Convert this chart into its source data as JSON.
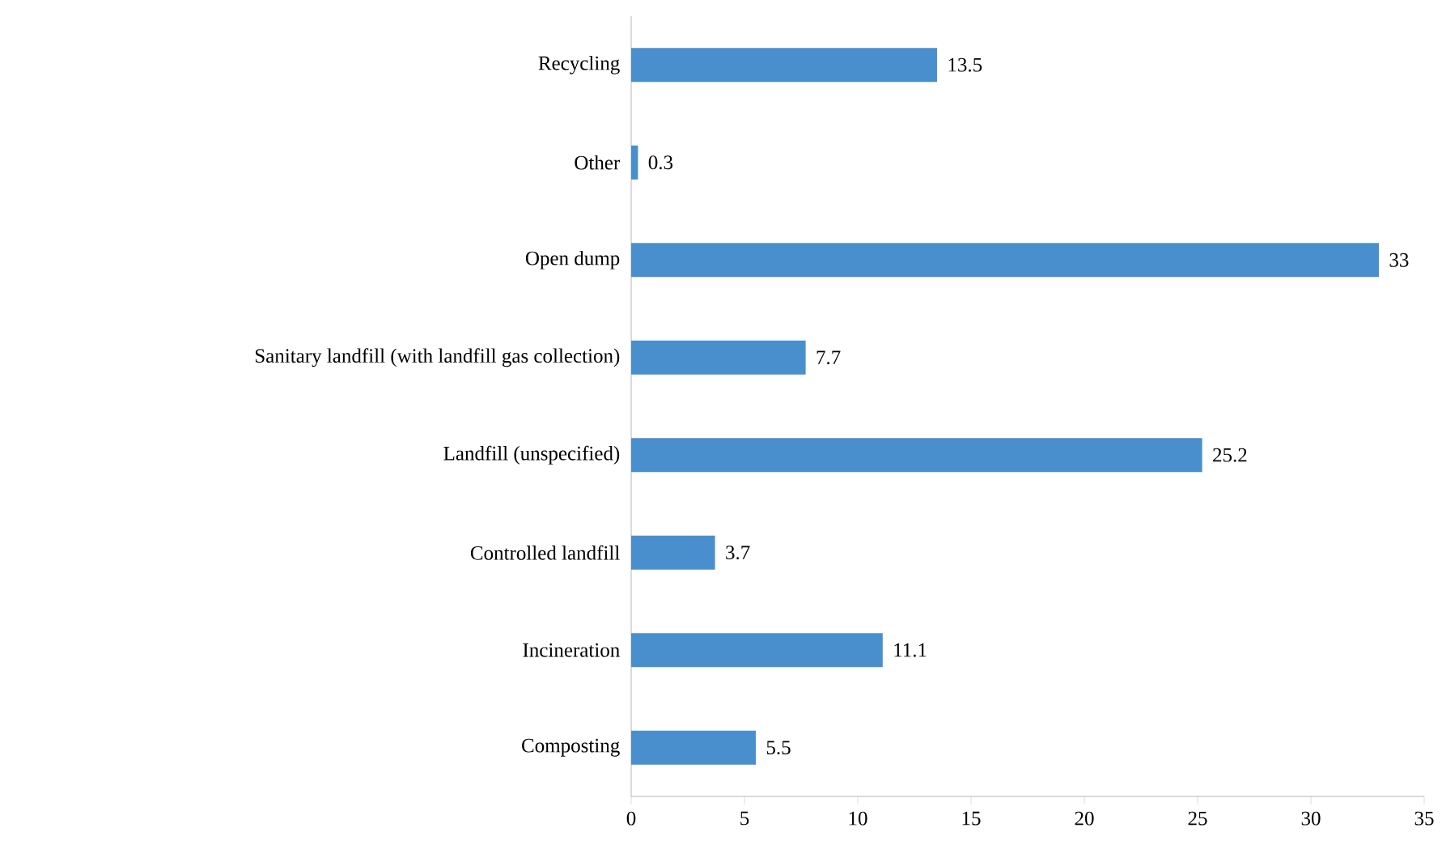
{
  "chart_data": {
    "type": "bar",
    "orientation": "horizontal",
    "categories": [
      "Recycling",
      "Other",
      "Open dump",
      "Sanitary landfill (with landfill gas collection)",
      "Landfill (unspecified)",
      "Controlled landfill",
      "Incineration",
      "Composting"
    ],
    "values": [
      13.5,
      0.3,
      33,
      7.7,
      25.2,
      3.7,
      11.1,
      5.5
    ],
    "color": "#4a8fcd",
    "xlim": [
      0,
      35
    ],
    "xticks": [
      0,
      5,
      10,
      15,
      20,
      25,
      30,
      35
    ],
    "data_labels": true
  }
}
